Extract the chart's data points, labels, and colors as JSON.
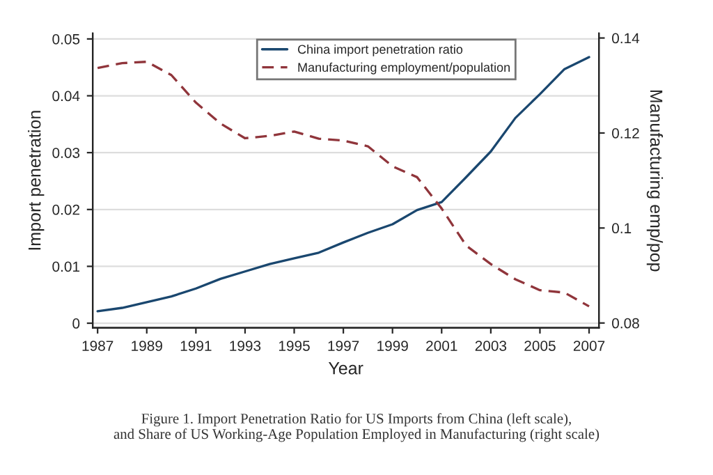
{
  "chart_data": {
    "type": "line",
    "xlabel": "Year",
    "ylabel": "Import penetration",
    "y2label": "Manufacturing emp/pop",
    "x": [
      1987,
      1988,
      1989,
      1990,
      1991,
      1992,
      1993,
      1994,
      1995,
      1996,
      1997,
      1998,
      1999,
      2000,
      2001,
      2002,
      2003,
      2004,
      2005,
      2006,
      2007
    ],
    "series": [
      {
        "name": "China import penetration ratio",
        "color": "#1a476f",
        "line_style": "solid",
        "values": [
          0.0021,
          0.0027,
          0.0037,
          0.0047,
          0.0061,
          0.0078,
          0.0091,
          0.0104,
          0.0114,
          0.0124,
          0.0142,
          0.0159,
          0.0174,
          0.0199,
          0.0213,
          0.0257,
          0.0302,
          0.0361,
          0.0403,
          0.0447,
          0.0468
        ]
      },
      {
        "name": "Manufacturing employment/population",
        "color": "#90353b",
        "line_style": "dashed",
        "axis": "y2",
        "values": [
          0.1337,
          0.1347,
          0.135,
          0.1322,
          0.1264,
          0.122,
          0.1189,
          0.1194,
          0.1203,
          0.1188,
          0.1184,
          0.1172,
          0.113,
          0.1107,
          0.1041,
          0.0963,
          0.0924,
          0.0892,
          0.0869,
          0.0864,
          0.0835
        ]
      }
    ],
    "xlim": [
      1986.8,
      2007.4
    ],
    "xticks": [
      1987,
      1989,
      1991,
      1993,
      1995,
      1997,
      1999,
      2001,
      2003,
      2005,
      2007
    ],
    "ylim": [
      -0.0008,
      0.051
    ],
    "yticks": [
      0,
      0.01,
      0.02,
      0.03,
      0.04,
      0.05
    ],
    "y2lim": [
      0.079,
      0.141
    ],
    "y2ticks": [
      0.08,
      0.1,
      0.12,
      0.14
    ],
    "grid": "y",
    "legend": "top",
    "marker": "none",
    "annotations": [
      "Figure 1. Import Penetration Ratio for US Imports from China (left scale),\nand Share of US Working-Age Population Employed in Manufacturing (right scale)"
    ]
  }
}
